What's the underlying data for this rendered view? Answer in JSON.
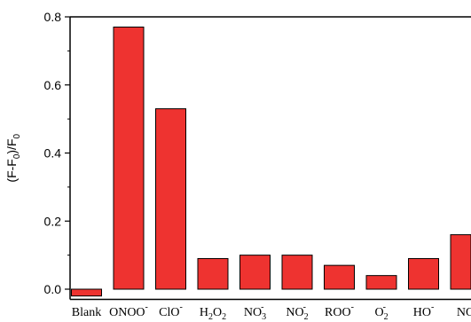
{
  "chart_data": {
    "type": "bar",
    "categories": [
      {
        "base": "Blank"
      },
      {
        "base": "ONOO",
        "sup": "-"
      },
      {
        "base": "ClO",
        "sup": "-"
      },
      {
        "base": "H",
        "sub": "2",
        "base2": "O",
        "sub2": "2"
      },
      {
        "base": "NO",
        "sub": "3",
        "sup": "-"
      },
      {
        "base": "NO",
        "sub": "2",
        "sup": "-"
      },
      {
        "base": "ROO",
        "sup": "-"
      },
      {
        "base": "O",
        "sub": "2",
        "sup": "-"
      },
      {
        "base": "HO",
        "sup": "-"
      },
      {
        "base": "NO"
      }
    ],
    "values": [
      -0.02,
      0.77,
      0.53,
      0.09,
      0.1,
      0.1,
      0.07,
      0.04,
      0.09,
      0.16
    ],
    "ylabel": {
      "base": "(F-F",
      "sub": "0",
      "mid": ")/F",
      "sub2": "0"
    },
    "ylim": [
      -0.03,
      0.8
    ],
    "yticks": [
      "0.0",
      "0.2",
      "0.4",
      "0.6",
      "0.8"
    ],
    "ytick_values": [
      0.0,
      0.2,
      0.4,
      0.6,
      0.8
    ],
    "bar_color": "#ee3330",
    "edge_color": "#000000",
    "grid": false,
    "legend": "none"
  }
}
